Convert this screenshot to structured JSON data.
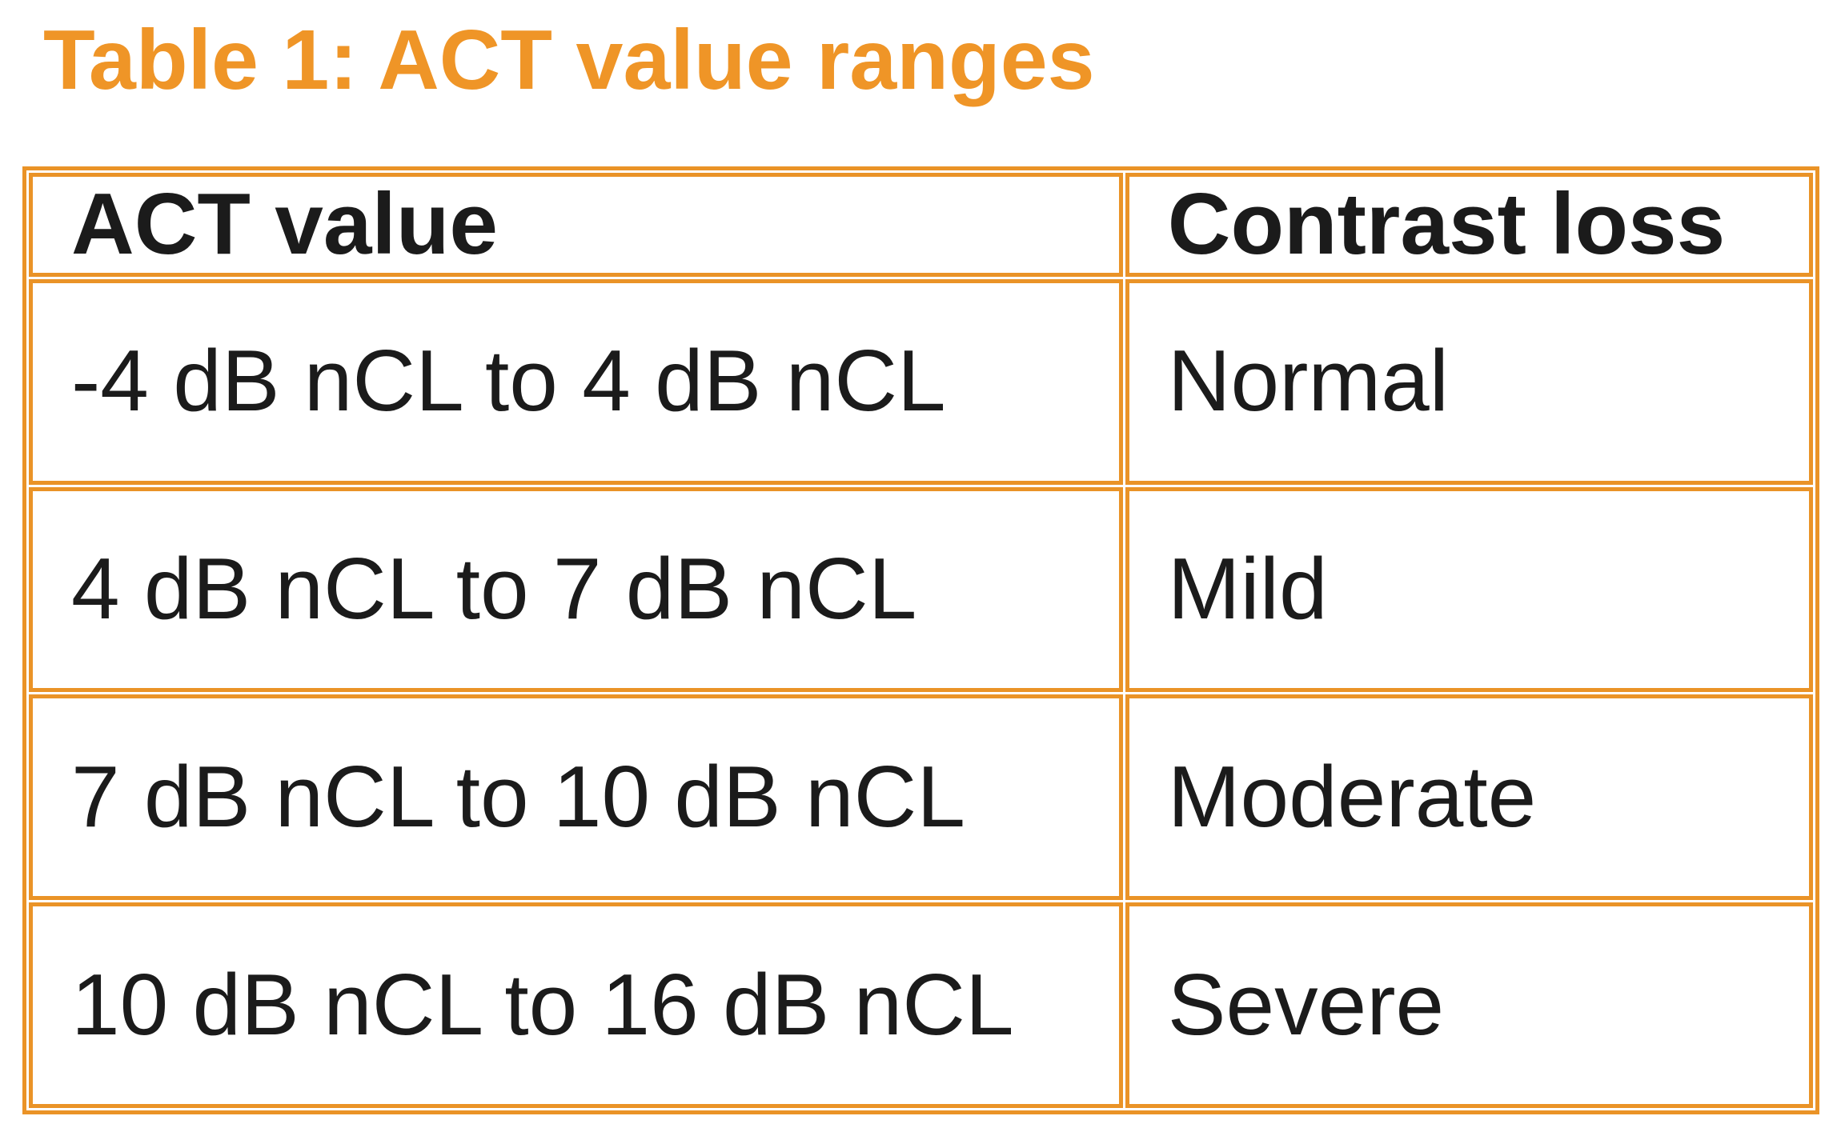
{
  "title": "Table 1: ACT value ranges",
  "colors": {
    "title_orange": "#EF9527",
    "border_orange": "#EA9327",
    "text_black": "#1B1B1B",
    "background": "#FFFFFF"
  },
  "table": {
    "headers": [
      "ACT value",
      "Contrast loss"
    ],
    "rows": [
      {
        "act_value": "-4 dB nCL to 4 dB nCL",
        "contrast_loss": "Normal"
      },
      {
        "act_value": "4 dB nCL to 7 dB nCL",
        "contrast_loss": "Mild"
      },
      {
        "act_value": "7 dB nCL to 10 dB nCL",
        "contrast_loss": "Moderate"
      },
      {
        "act_value": "10 dB nCL to 16 dB nCL",
        "contrast_loss": "Severe"
      }
    ]
  }
}
